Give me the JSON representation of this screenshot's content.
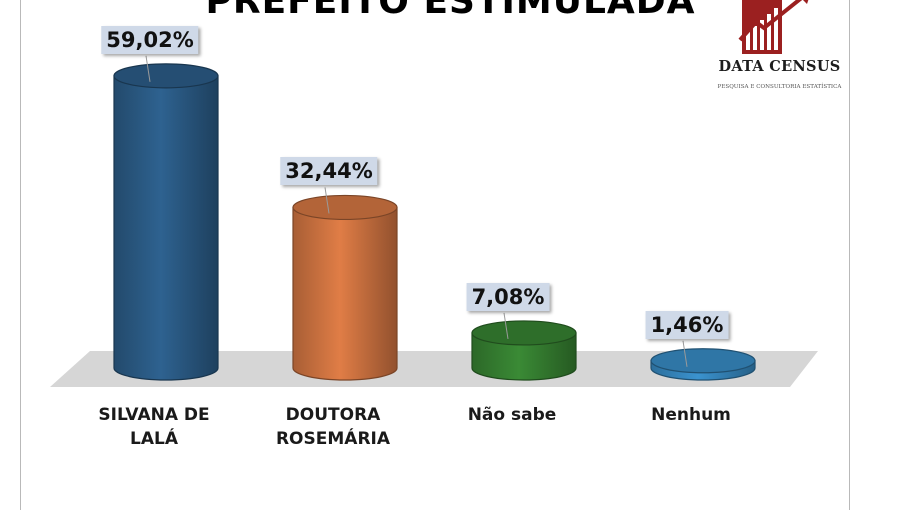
{
  "title": "PREFEITO ESTIMULADA",
  "logo": {
    "name": "DATA CENSUS",
    "tagline": "PESQUISA E CONSULTORIA ESTATÍSTICA",
    "color": "#9b2020"
  },
  "chart_data": {
    "type": "bar",
    "title": "PREFEITO ESTIMULADA",
    "xlabel": "",
    "ylabel": "",
    "ylim": [
      0,
      60
    ],
    "grid": false,
    "legend": "none",
    "categories": [
      {
        "line1": "SILVANA DE",
        "line2": "LALÁ"
      },
      {
        "line1": "DOUTORA",
        "line2": "ROSEMÁRIA"
      },
      {
        "line1": "Não sabe",
        "line2": ""
      },
      {
        "line1": "Nenhum",
        "line2": ""
      }
    ],
    "values": [
      59.02,
      32.44,
      7.08,
      1.46
    ],
    "value_labels": [
      "59,02%",
      "32,44%",
      "7,08%",
      "1,46%"
    ],
    "colors": [
      "#2e6290",
      "#e07d46",
      "#3a8a35",
      "#3b93cf"
    ]
  }
}
